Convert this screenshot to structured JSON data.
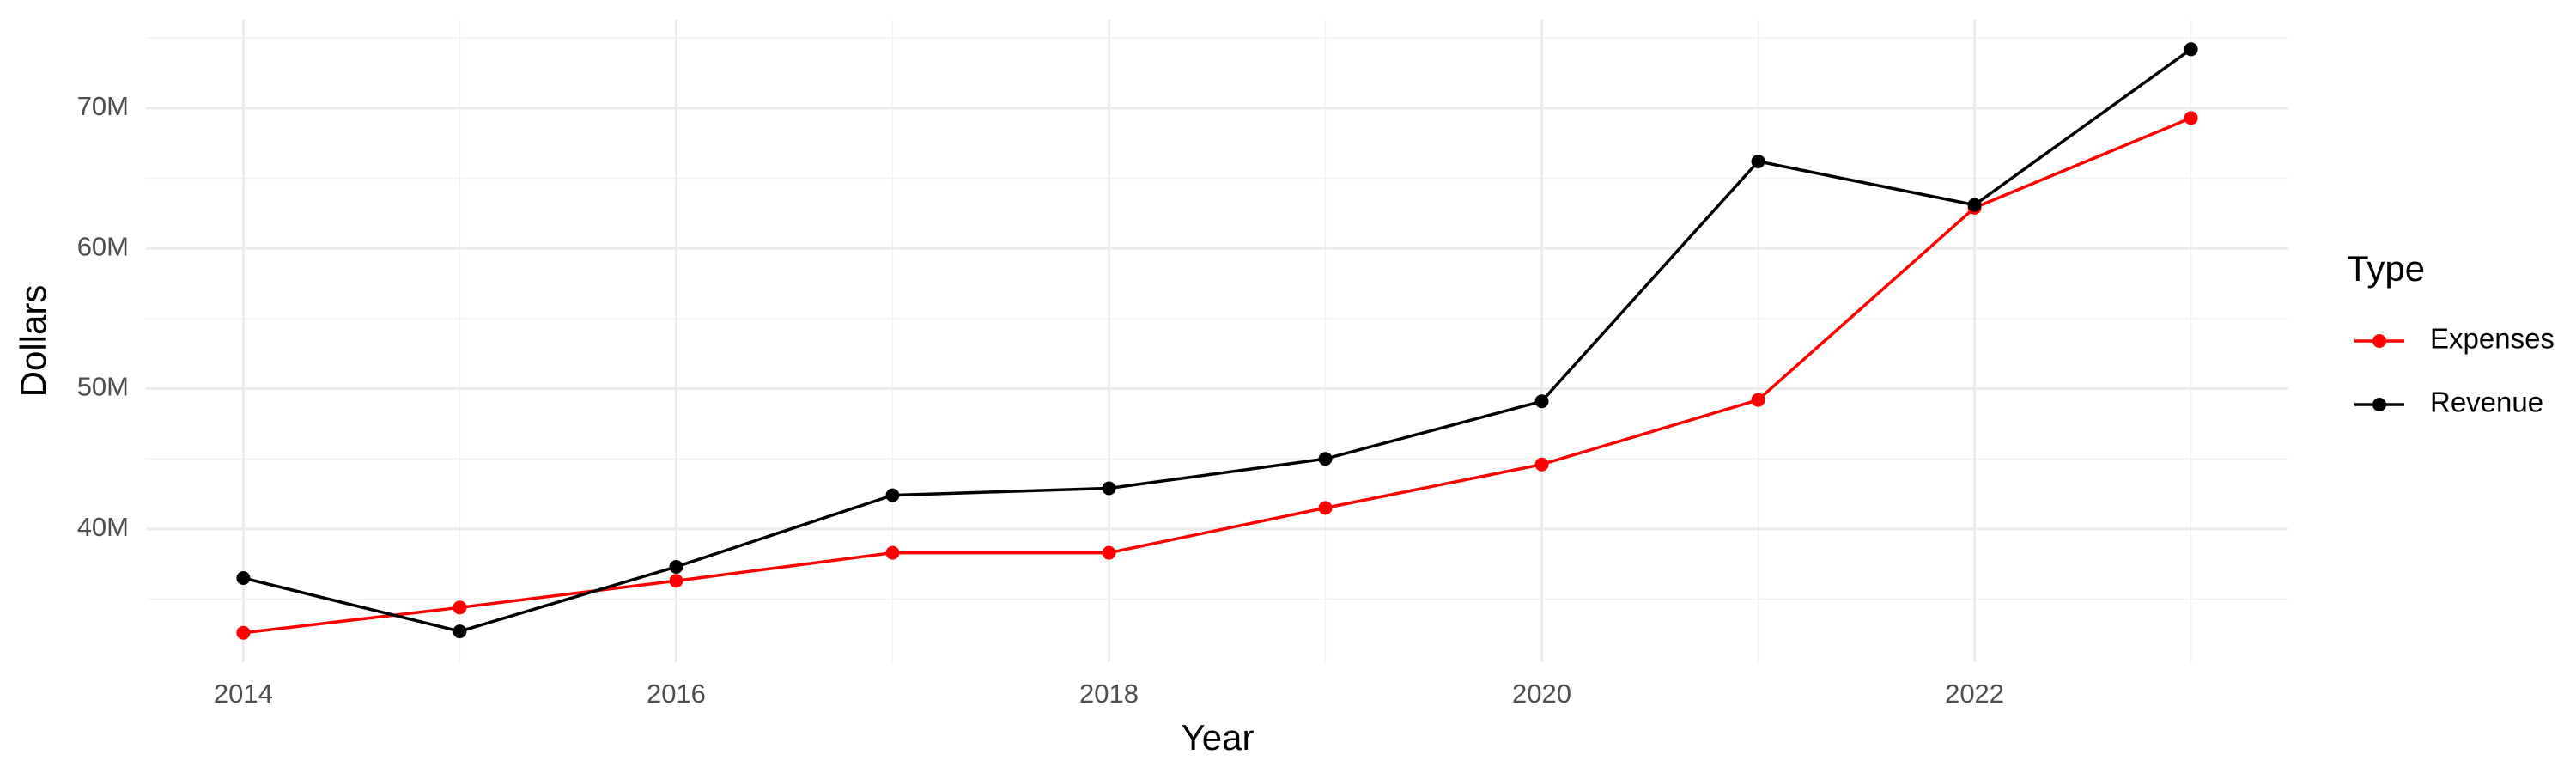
{
  "chart_data": {
    "type": "line",
    "x_label": "Year",
    "y_label": "Dollars",
    "legend_title": "Type",
    "legend_position": "right",
    "grid": true,
    "x": [
      2014,
      2015,
      2016,
      2017,
      2018,
      2019,
      2020,
      2021,
      2022,
      2023
    ],
    "series": [
      {
        "name": "Expenses",
        "color": "#ff0000",
        "values": [
          32600000,
          34400000,
          36300000,
          38300000,
          38300000,
          41500000,
          44600000,
          49200000,
          62900000,
          69300000
        ]
      },
      {
        "name": "Revenue",
        "color": "#000000",
        "values": [
          36500000,
          32700000,
          37300000,
          42400000,
          42900000,
          45000000,
          49100000,
          66200000,
          63100000,
          74200000
        ]
      }
    ],
    "xlim": [
      2013.55,
      2023.45
    ],
    "xticks": [
      2014,
      2016,
      2018,
      2020,
      2022
    ],
    "xticks_minor": [
      2015,
      2017,
      2019,
      2021,
      2023
    ],
    "ylim": [
      30500000,
      76300000
    ],
    "yticks": [
      {
        "value": 40000000,
        "label": "40M"
      },
      {
        "value": 50000000,
        "label": "50M"
      },
      {
        "value": 60000000,
        "label": "60M"
      },
      {
        "value": 70000000,
        "label": "70M"
      }
    ],
    "yticks_minor": [
      35000000,
      45000000,
      55000000,
      65000000,
      75000000
    ]
  }
}
